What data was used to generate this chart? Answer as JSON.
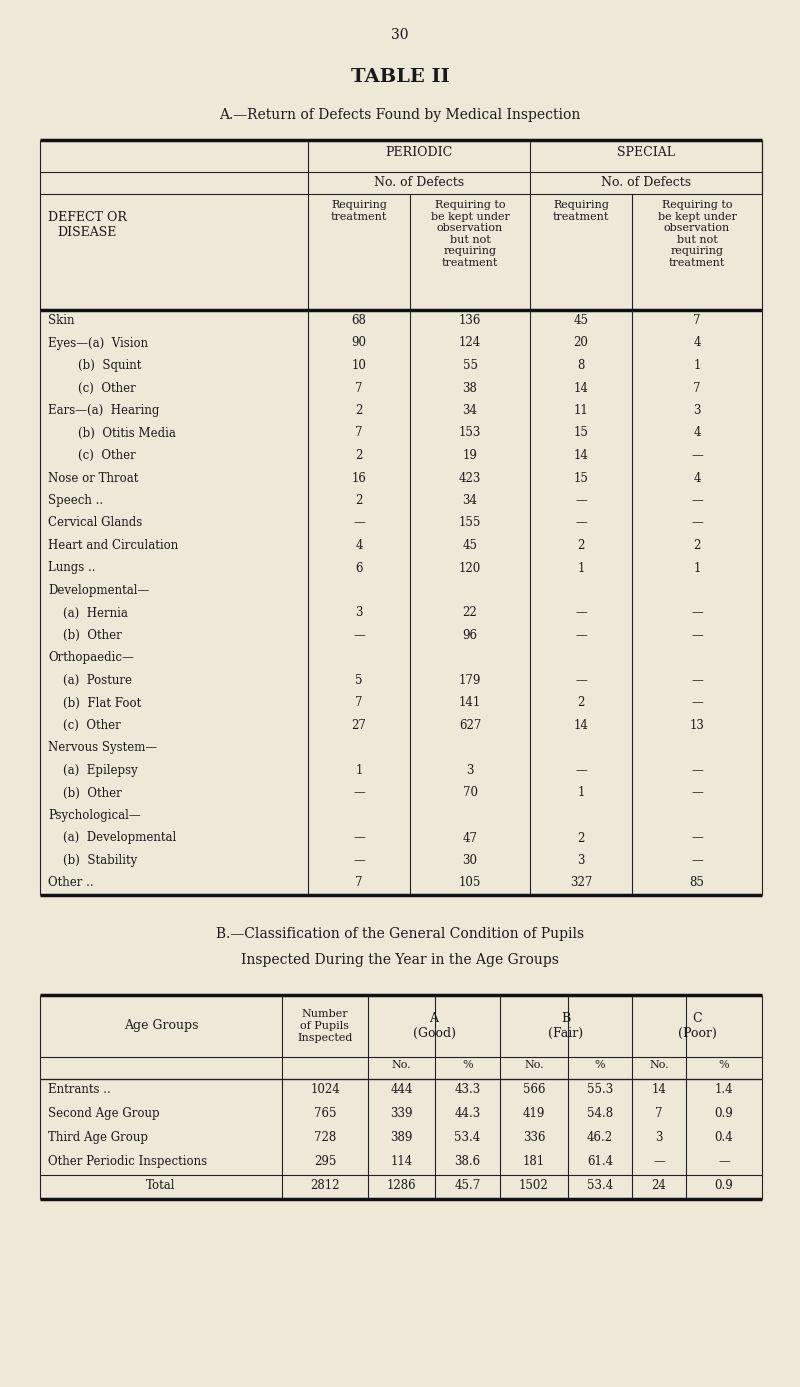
{
  "page_number": "30",
  "title": "TABLE II",
  "subtitle_a": "A.—Return of Defects Found by Medical Inspection",
  "subtitle_b_line1": "B.—Classification of the General Condition of Pupils",
  "subtitle_b_line2": "Inspected During the Year in the Age Groups",
  "bg_color": "#ede8d8",
  "text_color": "#1a1a1a",
  "table_a_rows": [
    [
      "Skin",
      "68",
      "136",
      "45",
      "7"
    ],
    [
      "Eyes—(a)  Vision",
      "90",
      "124",
      "20",
      "4"
    ],
    [
      "        (b)  Squint",
      "10",
      "55",
      "8",
      "1"
    ],
    [
      "        (c)  Other",
      "7",
      "38",
      "14",
      "7"
    ],
    [
      "Ears—(a)  Hearing",
      "2",
      "34",
      "11",
      "3"
    ],
    [
      "        (b)  Otitis Media",
      "7",
      "153",
      "15",
      "4"
    ],
    [
      "        (c)  Other",
      "2",
      "19",
      "14",
      "—"
    ],
    [
      "Nose or Throat",
      "16",
      "423",
      "15",
      "4"
    ],
    [
      "Speech ..",
      "2",
      "34",
      "—",
      "—"
    ],
    [
      "Cervical Glands",
      "—",
      "155",
      "—",
      "—"
    ],
    [
      "Heart and Circulation",
      "4",
      "45",
      "2",
      "2"
    ],
    [
      "Lungs ..",
      "6",
      "120",
      "1",
      "1"
    ],
    [
      "Developmental—",
      "",
      "",
      "",
      ""
    ],
    [
      "    (a)  Hernia",
      "3",
      "22",
      "—",
      "—"
    ],
    [
      "    (b)  Other",
      "—",
      "96",
      "—",
      "—"
    ],
    [
      "Orthopaedic—",
      "",
      "",
      "",
      ""
    ],
    [
      "    (a)  Posture",
      "5",
      "179",
      "—",
      "—"
    ],
    [
      "    (b)  Flat Foot",
      "7",
      "141",
      "2",
      "—"
    ],
    [
      "    (c)  Other",
      "27",
      "627",
      "14",
      "13"
    ],
    [
      "Nervous System—",
      "",
      "",
      "",
      ""
    ],
    [
      "    (a)  Epilepsy",
      "1",
      "3",
      "—",
      "—"
    ],
    [
      "    (b)  Other",
      "—",
      "70",
      "1",
      "—"
    ],
    [
      "Psychological—",
      "",
      "",
      "",
      ""
    ],
    [
      "    (a)  Developmental",
      "—",
      "47",
      "2",
      "—"
    ],
    [
      "    (b)  Stability",
      "—",
      "30",
      "3",
      "—"
    ],
    [
      "Other ..",
      "7",
      "105",
      "327",
      "85"
    ]
  ],
  "table_b_rows": [
    [
      "Entrants ..",
      "1024",
      "444",
      "43.3",
      "566",
      "55.3",
      "14",
      "1.4"
    ],
    [
      "Second Age Group",
      "765",
      "339",
      "44.3",
      "419",
      "54.8",
      "7",
      "0.9"
    ],
    [
      "Third Age Group",
      "728",
      "389",
      "53.4",
      "336",
      "46.2",
      "3",
      "0.4"
    ],
    [
      "Other Periodic Inspections",
      "295",
      "114",
      "38.6",
      "181",
      "61.4",
      "—",
      "—"
    ]
  ],
  "table_b_total": [
    "Total",
    "2812",
    "1286",
    "45.7",
    "1502",
    "53.4",
    "24",
    "0.9"
  ]
}
